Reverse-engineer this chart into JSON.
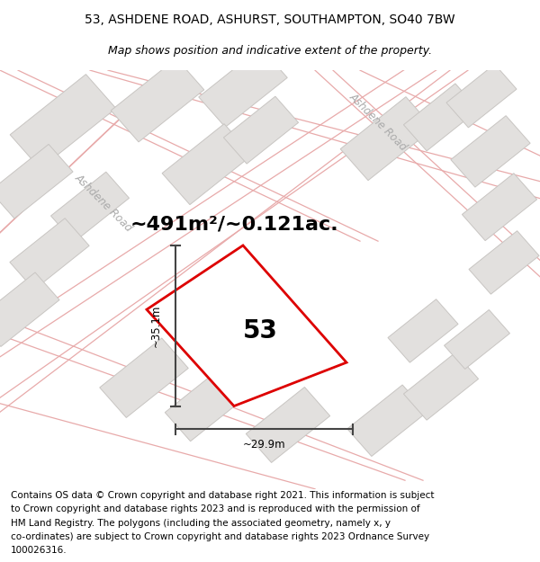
{
  "title": "53, ASHDENE ROAD, ASHURST, SOUTHAMPTON, SO40 7BW",
  "subtitle": "Map shows position and indicative extent of the property.",
  "area_label": "~491m²/~0.121ac.",
  "property_number": "53",
  "dim_width_label": "~29.9m",
  "dim_height_label": "~35.1m",
  "road_label": "Ashdene Road",
  "footer_lines": [
    "Contains OS data © Crown copyright and database right 2021. This information is subject",
    "to Crown copyright and database rights 2023 and is reproduced with the permission of",
    "HM Land Registry. The polygons (including the associated geometry, namely x, y",
    "co-ordinates) are subject to Crown copyright and database rights 2023 Ordnance Survey",
    "100026316."
  ],
  "map_bg": "#f5f4f2",
  "building_fill": "#e2e0de",
  "building_edge": "#c8c5c2",
  "road_line_color": "#e8aaaa",
  "property_fill": "#ffffff",
  "property_edge": "#dd0000",
  "dim_line_color": "#444444",
  "title_fontsize": 10,
  "subtitle_fontsize": 9,
  "footer_fontsize": 7.5,
  "area_fontsize": 16,
  "number_fontsize": 20
}
